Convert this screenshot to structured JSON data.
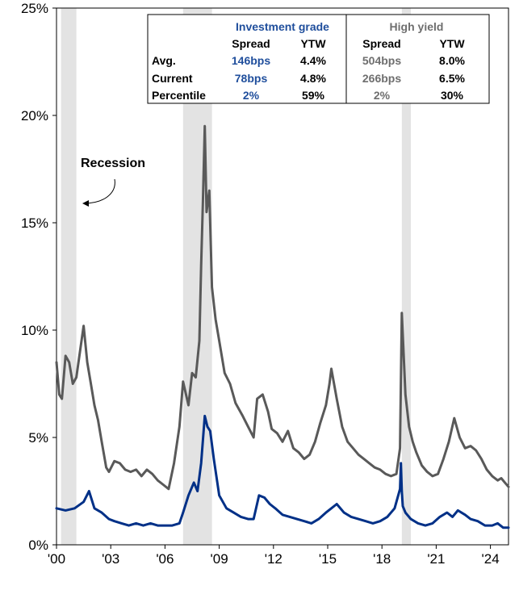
{
  "chart_data": {
    "type": "line",
    "title": "",
    "xlabel": "",
    "ylabel": "",
    "ylim": [
      0,
      25
    ],
    "xlim": [
      2000,
      2025
    ],
    "y_ticks": [
      0,
      5,
      10,
      15,
      20,
      25
    ],
    "y_tick_labels": [
      "0%",
      "5%",
      "10%",
      "15%",
      "20%",
      "25%"
    ],
    "x_ticks": [
      2000,
      2003,
      2006,
      2009,
      2012,
      2015,
      2018,
      2021,
      2024
    ],
    "x_tick_labels": [
      "'00",
      "'03",
      "'06",
      "'09",
      "'12",
      "'15",
      "'18",
      "'21",
      "'24"
    ],
    "grid": false,
    "recessions": [
      {
        "start": 2000.25,
        "end": 2001.1
      },
      {
        "start": 2007.0,
        "end": 2008.6
      },
      {
        "start": 2019.1,
        "end": 2019.6
      }
    ],
    "annotation": "Recession",
    "series": [
      {
        "name": "High yield",
        "color": "#595959",
        "x": [
          2000.0,
          2000.15,
          2000.3,
          2000.5,
          2000.7,
          2000.9,
          2001.1,
          2001.3,
          2001.5,
          2001.7,
          2001.9,
          2002.1,
          2002.3,
          2002.5,
          2002.75,
          2002.9,
          2003.2,
          2003.5,
          2003.8,
          2004.1,
          2004.4,
          2004.7,
          2005.0,
          2005.3,
          2005.6,
          2005.9,
          2006.2,
          2006.5,
          2006.8,
          2007.0,
          2007.3,
          2007.5,
          2007.7,
          2007.9,
          2008.0,
          2008.1,
          2008.2,
          2008.3,
          2008.45,
          2008.6,
          2008.8,
          2009.0,
          2009.3,
          2009.6,
          2009.9,
          2010.3,
          2010.6,
          2010.9,
          2011.1,
          2011.4,
          2011.7,
          2011.9,
          2012.2,
          2012.5,
          2012.8,
          2013.1,
          2013.4,
          2013.7,
          2014.0,
          2014.3,
          2014.6,
          2014.9,
          2015.1,
          2015.2,
          2015.5,
          2015.8,
          2016.1,
          2016.4,
          2016.7,
          2017.0,
          2017.3,
          2017.6,
          2017.9,
          2018.2,
          2018.5,
          2018.8,
          2019.0,
          2019.1,
          2019.3,
          2019.5,
          2019.7,
          2019.9,
          2020.2,
          2020.5,
          2020.8,
          2021.1,
          2021.4,
          2021.7,
          2022.0,
          2022.3,
          2022.6,
          2022.9,
          2023.2,
          2023.5,
          2023.8,
          2024.1,
          2024.4,
          2024.6,
          2024.8,
          2025.0
        ],
        "values": [
          8.5,
          7.0,
          6.8,
          8.8,
          8.5,
          7.5,
          7.8,
          9.0,
          10.2,
          8.5,
          7.5,
          6.5,
          5.8,
          4.8,
          3.6,
          3.4,
          3.9,
          3.8,
          3.5,
          3.4,
          3.5,
          3.2,
          3.5,
          3.3,
          3.0,
          2.8,
          2.6,
          3.8,
          5.5,
          7.6,
          6.5,
          8.0,
          7.8,
          9.5,
          13.0,
          16.0,
          19.5,
          15.5,
          16.5,
          12.0,
          10.5,
          9.5,
          8.0,
          7.5,
          6.6,
          6.0,
          5.5,
          5.0,
          6.8,
          7.0,
          6.2,
          5.4,
          5.2,
          4.8,
          5.3,
          4.5,
          4.3,
          4.0,
          4.2,
          4.8,
          5.7,
          6.5,
          7.5,
          8.2,
          6.8,
          5.5,
          4.8,
          4.5,
          4.2,
          4.0,
          3.8,
          3.6,
          3.5,
          3.3,
          3.2,
          3.3,
          4.5,
          10.8,
          7.0,
          5.5,
          4.8,
          4.3,
          3.7,
          3.4,
          3.2,
          3.3,
          4.0,
          4.8,
          5.9,
          5.0,
          4.5,
          4.6,
          4.4,
          4.0,
          3.5,
          3.2,
          3.0,
          3.1,
          2.9,
          2.7
        ]
      },
      {
        "name": "Investment grade",
        "color": "#003087",
        "x": [
          2000.0,
          2000.5,
          2001.0,
          2001.5,
          2001.8,
          2002.1,
          2002.5,
          2002.9,
          2003.2,
          2003.6,
          2004.0,
          2004.4,
          2004.8,
          2005.2,
          2005.6,
          2006.0,
          2006.4,
          2006.8,
          2007.0,
          2007.3,
          2007.6,
          2007.8,
          2008.0,
          2008.2,
          2008.35,
          2008.5,
          2008.7,
          2009.0,
          2009.4,
          2009.8,
          2010.2,
          2010.6,
          2010.9,
          2011.2,
          2011.5,
          2011.8,
          2012.1,
          2012.5,
          2012.9,
          2013.3,
          2013.7,
          2014.1,
          2014.5,
          2014.9,
          2015.2,
          2015.5,
          2015.9,
          2016.3,
          2016.7,
          2017.1,
          2017.5,
          2017.9,
          2018.3,
          2018.7,
          2019.0,
          2019.05,
          2019.1,
          2019.15,
          2019.3,
          2019.6,
          2020.0,
          2020.4,
          2020.8,
          2021.2,
          2021.6,
          2021.9,
          2022.2,
          2022.6,
          2022.9,
          2023.3,
          2023.7,
          2024.1,
          2024.4,
          2024.7,
          2025.0
        ],
        "values": [
          1.7,
          1.6,
          1.7,
          2.0,
          2.5,
          1.7,
          1.5,
          1.2,
          1.1,
          1.0,
          0.9,
          1.0,
          0.9,
          1.0,
          0.9,
          0.9,
          0.9,
          1.0,
          1.5,
          2.3,
          2.9,
          2.5,
          3.8,
          6.0,
          5.5,
          5.3,
          4.0,
          2.3,
          1.7,
          1.5,
          1.3,
          1.2,
          1.2,
          2.3,
          2.2,
          1.9,
          1.7,
          1.4,
          1.3,
          1.2,
          1.1,
          1.0,
          1.2,
          1.5,
          1.7,
          1.9,
          1.5,
          1.3,
          1.2,
          1.1,
          1.0,
          1.1,
          1.3,
          1.7,
          2.6,
          3.8,
          2.5,
          1.8,
          1.5,
          1.2,
          1.0,
          0.9,
          1.0,
          1.3,
          1.5,
          1.3,
          1.6,
          1.4,
          1.2,
          1.1,
          0.9,
          0.9,
          1.0,
          0.8,
          0.8
        ]
      }
    ]
  },
  "stats_table": {
    "groups": [
      {
        "label": "Investment grade",
        "color": "#1f4e9c"
      },
      {
        "label": "High yield",
        "color": "#6e6e6e"
      }
    ],
    "columns": [
      "Spread",
      "YTW",
      "Spread",
      "YTW"
    ],
    "rows": [
      {
        "label": "Avg.",
        "values": [
          "146bps",
          "4.4%",
          "504bps",
          "8.0%"
        ]
      },
      {
        "label": "Current",
        "values": [
          "78bps",
          "4.8%",
          "266bps",
          "6.5%"
        ]
      },
      {
        "label": "Percentile",
        "values": [
          "2%",
          "59%",
          "2%",
          "30%"
        ]
      }
    ]
  }
}
